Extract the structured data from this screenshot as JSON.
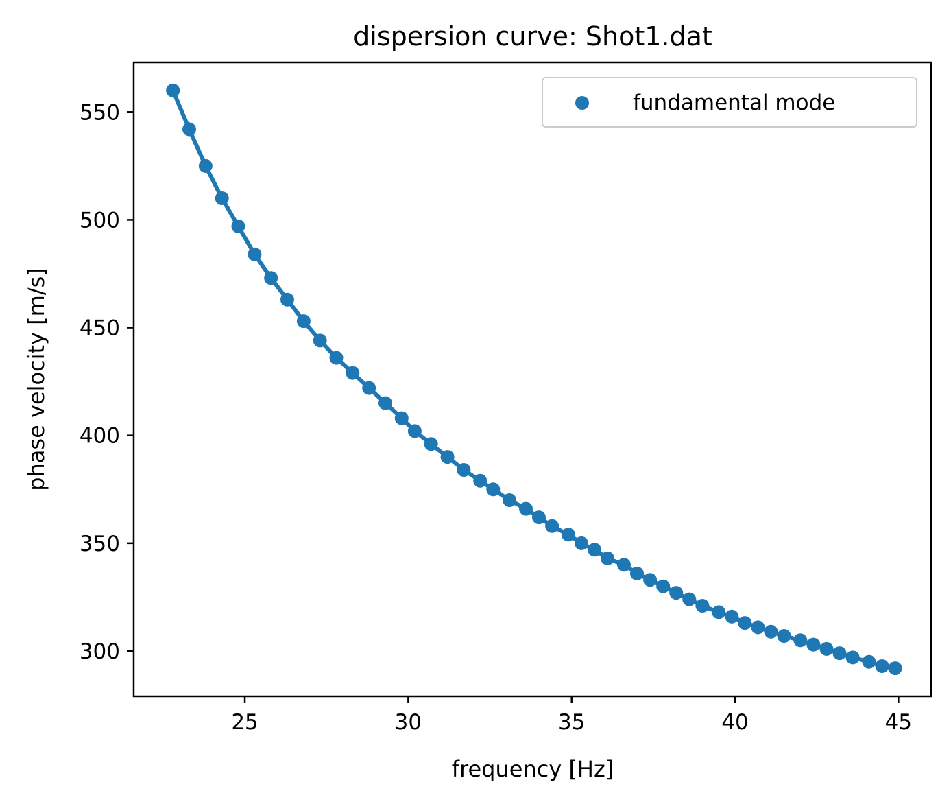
{
  "chart_data": {
    "type": "scatter",
    "title": "dispersion curve: Shot1.dat",
    "xlabel": "frequency [Hz]",
    "ylabel": "phase velocity [m/s]",
    "xlim": [
      21.6,
      46.0
    ],
    "ylim": [
      279,
      573
    ],
    "xticks": [
      25,
      30,
      35,
      40,
      45
    ],
    "yticks": [
      300,
      350,
      400,
      450,
      500,
      550
    ],
    "grid": false,
    "legend_position": "top-right",
    "colors": {
      "series": "#1f77b4",
      "axes": "#000000",
      "legend_border": "#cccccc"
    },
    "series": [
      {
        "name": "fundamental mode",
        "fit_line": true,
        "x": [
          22.8,
          23.3,
          23.8,
          24.3,
          24.8,
          25.3,
          25.8,
          26.3,
          26.8,
          27.3,
          27.8,
          28.3,
          28.8,
          29.3,
          29.8,
          30.2,
          30.7,
          31.2,
          31.7,
          32.2,
          32.6,
          33.1,
          33.6,
          34.0,
          34.4,
          34.9,
          35.3,
          35.7,
          36.1,
          36.6,
          37.0,
          37.4,
          37.8,
          38.2,
          38.6,
          39.0,
          39.5,
          39.9,
          40.3,
          40.7,
          41.1,
          41.5,
          42.0,
          42.4,
          42.8,
          43.2,
          43.6,
          44.1,
          44.5,
          44.9
        ],
        "y": [
          560,
          542,
          525,
          510,
          497,
          484,
          473,
          463,
          453,
          444,
          436,
          429,
          422,
          415,
          408,
          402,
          396,
          390,
          384,
          379,
          375,
          370,
          366,
          362,
          358,
          354,
          350,
          347,
          343,
          340,
          336,
          333,
          330,
          327,
          324,
          321,
          318,
          316,
          313,
          311,
          309,
          307,
          305,
          303,
          301,
          299,
          297,
          295,
          293,
          292
        ]
      }
    ]
  }
}
